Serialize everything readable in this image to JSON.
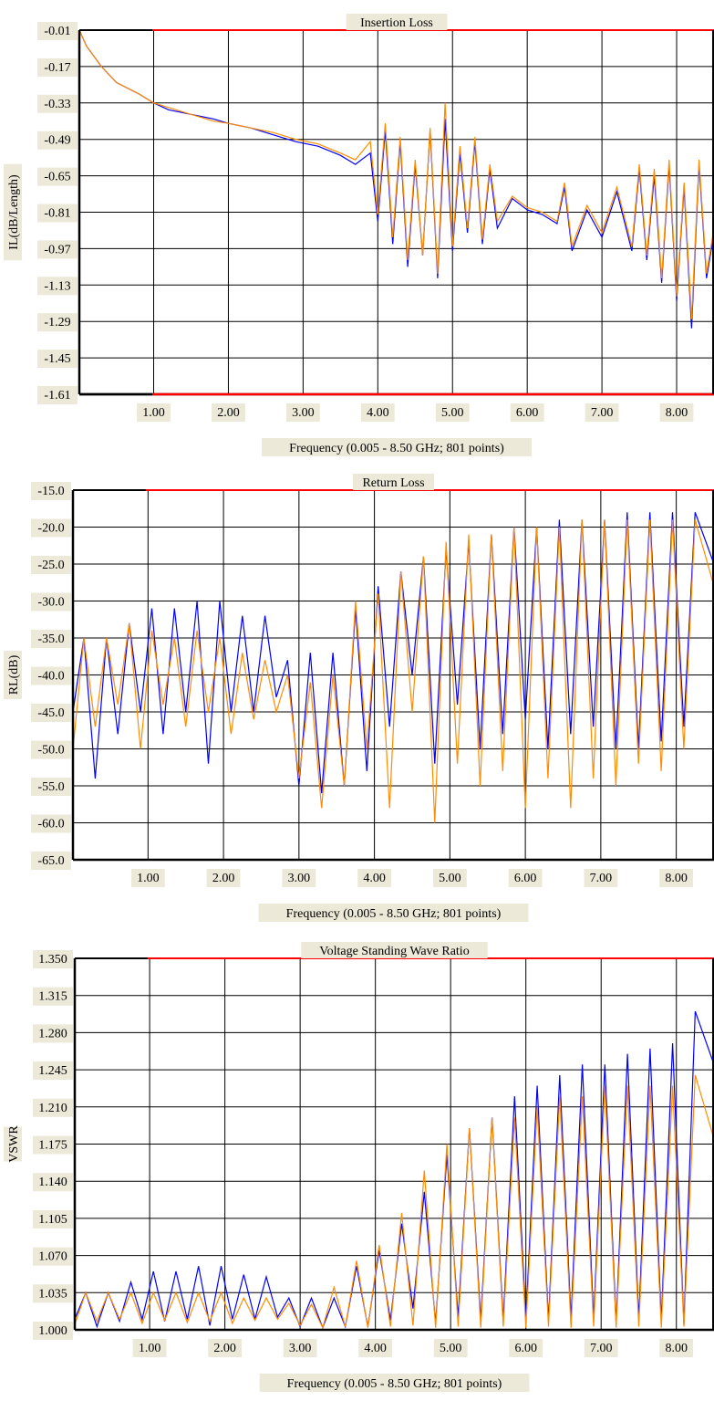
{
  "colors": {
    "background": "#ffffff",
    "frame": "#000000",
    "label_bg": "#ece9d8",
    "top_rule": "#ff0000",
    "series_a": "#0000ff",
    "series_b": "#ff8c00"
  },
  "chart_data": [
    {
      "type": "line",
      "title": "Insertion Loss",
      "ylabel": "IL(dB/Length)",
      "xlabel": "Frequency (0.005 - 8.50 GHz; 801 points)",
      "xlim": [
        0.005,
        8.5
      ],
      "ylim": [
        -1.61,
        -0.01
      ],
      "x_ticks": [
        "1.00",
        "2.00",
        "3.00",
        "4.00",
        "5.00",
        "6.00",
        "7.00",
        "8.00"
      ],
      "y_ticks": [
        "-0.01",
        "-0.17",
        "-0.33",
        "-0.49",
        "-0.65",
        "-0.81",
        "-0.97",
        "-1.13",
        "-1.29",
        "-1.45",
        "-1.61"
      ],
      "grid": true,
      "series": [
        {
          "color": "blue",
          "x": [
            0.005,
            0.1,
            0.3,
            0.5,
            0.8,
            1.0,
            1.2,
            1.5,
            1.8,
            2.0,
            2.3,
            2.6,
            2.9,
            3.2,
            3.5,
            3.7,
            3.9,
            4.0,
            4.1,
            4.2,
            4.3,
            4.4,
            4.5,
            4.6,
            4.7,
            4.8,
            4.9,
            5.0,
            5.1,
            5.2,
            5.3,
            5.4,
            5.5,
            5.6,
            5.8,
            6.0,
            6.2,
            6.4,
            6.5,
            6.6,
            6.8,
            7.0,
            7.2,
            7.4,
            7.5,
            7.6,
            7.7,
            7.8,
            7.9,
            8.0,
            8.1,
            8.2,
            8.3,
            8.4,
            8.5
          ],
          "y": [
            -0.01,
            -0.08,
            -0.17,
            -0.24,
            -0.29,
            -0.33,
            -0.36,
            -0.38,
            -0.4,
            -0.42,
            -0.44,
            -0.47,
            -0.5,
            -0.52,
            -0.56,
            -0.6,
            -0.55,
            -0.85,
            -0.45,
            -0.95,
            -0.5,
            -1.05,
            -0.6,
            -1.0,
            -0.45,
            -1.1,
            -0.4,
            -0.98,
            -0.55,
            -0.9,
            -0.5,
            -0.95,
            -0.62,
            -0.88,
            -0.75,
            -0.8,
            -0.82,
            -0.86,
            -0.7,
            -0.98,
            -0.8,
            -0.92,
            -0.72,
            -0.98,
            -0.62,
            -1.02,
            -0.65,
            -1.12,
            -0.6,
            -1.2,
            -0.7,
            -1.32,
            -0.6,
            -1.1,
            -0.9
          ]
        },
        {
          "color": "orange",
          "x": [
            0.005,
            0.1,
            0.3,
            0.5,
            0.8,
            1.0,
            1.2,
            1.5,
            1.8,
            2.0,
            2.3,
            2.6,
            2.9,
            3.2,
            3.5,
            3.7,
            3.9,
            4.0,
            4.1,
            4.2,
            4.3,
            4.4,
            4.5,
            4.6,
            4.7,
            4.8,
            4.9,
            5.0,
            5.1,
            5.2,
            5.3,
            5.4,
            5.5,
            5.6,
            5.8,
            6.0,
            6.2,
            6.4,
            6.5,
            6.6,
            6.8,
            7.0,
            7.2,
            7.4,
            7.5,
            7.6,
            7.7,
            7.8,
            7.9,
            8.0,
            8.1,
            8.2,
            8.3,
            8.4,
            8.5
          ],
          "y": [
            -0.01,
            -0.08,
            -0.17,
            -0.24,
            -0.29,
            -0.33,
            -0.35,
            -0.38,
            -0.41,
            -0.42,
            -0.44,
            -0.46,
            -0.49,
            -0.51,
            -0.55,
            -0.58,
            -0.5,
            -0.82,
            -0.42,
            -0.92,
            -0.48,
            -1.02,
            -0.58,
            -1.0,
            -0.44,
            -1.08,
            -0.33,
            -0.96,
            -0.52,
            -0.88,
            -0.48,
            -0.93,
            -0.6,
            -0.85,
            -0.74,
            -0.79,
            -0.81,
            -0.85,
            -0.68,
            -0.96,
            -0.78,
            -0.9,
            -0.7,
            -0.96,
            -0.6,
            -1.0,
            -0.62,
            -1.1,
            -0.58,
            -1.18,
            -0.68,
            -1.28,
            -0.58,
            -1.08,
            -0.88
          ]
        }
      ]
    },
    {
      "type": "line",
      "title": "Return Loss",
      "ylabel": "RL(dB)",
      "xlabel": "Frequency (0.005 - 8.50 GHz; 801 points)",
      "xlim": [
        0.005,
        8.5
      ],
      "ylim": [
        -65.0,
        -15.0
      ],
      "x_ticks": [
        "1.00",
        "2.00",
        "3.00",
        "4.00",
        "5.00",
        "6.00",
        "7.00",
        "8.00"
      ],
      "y_ticks": [
        "-15.0",
        "-20.0",
        "-25.0",
        "-30.0",
        "-35.0",
        "-40.0",
        "-45.0",
        "-50.0",
        "-55.0",
        "-60.0",
        "-65.0"
      ],
      "grid": true,
      "series": [
        {
          "color": "blue",
          "x": [
            0.005,
            0.15,
            0.3,
            0.45,
            0.6,
            0.75,
            0.9,
            1.05,
            1.2,
            1.35,
            1.5,
            1.65,
            1.8,
            1.95,
            2.1,
            2.25,
            2.4,
            2.55,
            2.7,
            2.85,
            3.0,
            3.15,
            3.3,
            3.45,
            3.6,
            3.75,
            3.9,
            4.05,
            4.2,
            4.35,
            4.5,
            4.65,
            4.8,
            4.95,
            5.1,
            5.25,
            5.4,
            5.55,
            5.7,
            5.85,
            6.0,
            6.15,
            6.3,
            6.45,
            6.6,
            6.75,
            6.9,
            7.05,
            7.2,
            7.35,
            7.5,
            7.65,
            7.8,
            7.95,
            8.1,
            8.25,
            8.5
          ],
          "y": [
            -45,
            -35,
            -54,
            -35,
            -48,
            -33,
            -45,
            -31,
            -48,
            -31,
            -45,
            -30,
            -52,
            -30,
            -45,
            -32,
            -45,
            -32,
            -43,
            -38,
            -55,
            -37,
            -56,
            -37,
            -55,
            -31,
            -53,
            -28,
            -47,
            -26,
            -40,
            -24,
            -52,
            -23,
            -44,
            -22,
            -50,
            -21,
            -48,
            -20,
            -46,
            -20,
            -50,
            -19,
            -48,
            -19,
            -47,
            -19,
            -50,
            -18,
            -50,
            -18,
            -49,
            -18,
            -47,
            -18,
            -25
          ]
        },
        {
          "color": "orange",
          "x": [
            0.005,
            0.15,
            0.3,
            0.45,
            0.6,
            0.75,
            0.9,
            1.05,
            1.2,
            1.35,
            1.5,
            1.65,
            1.8,
            1.95,
            2.1,
            2.25,
            2.4,
            2.55,
            2.7,
            2.85,
            3.0,
            3.15,
            3.3,
            3.45,
            3.6,
            3.75,
            3.9,
            4.05,
            4.2,
            4.35,
            4.5,
            4.65,
            4.8,
            4.95,
            5.1,
            5.25,
            5.4,
            5.55,
            5.7,
            5.85,
            6.0,
            6.15,
            6.3,
            6.45,
            6.6,
            6.75,
            6.9,
            7.05,
            7.2,
            7.35,
            7.5,
            7.65,
            7.8,
            7.95,
            8.1,
            8.25,
            8.5
          ],
          "y": [
            -50,
            -35,
            -47,
            -35,
            -44,
            -33,
            -50,
            -34,
            -44,
            -35,
            -47,
            -34,
            -45,
            -35,
            -48,
            -37,
            -46,
            -38,
            -45,
            -40,
            -54,
            -41,
            -58,
            -40,
            -55,
            -30,
            -50,
            -29,
            -58,
            -26,
            -45,
            -24,
            -60,
            -22,
            -52,
            -21,
            -55,
            -21,
            -53,
            -20,
            -58,
            -20,
            -54,
            -20,
            -58,
            -19,
            -54,
            -19,
            -55,
            -19,
            -52,
            -19,
            -53,
            -19,
            -50,
            -19,
            -28
          ]
        }
      ]
    },
    {
      "type": "line",
      "title": "Voltage Standing Wave Ratio",
      "ylabel": "VSWR",
      "xlabel": "Frequency (0.005 - 8.50 GHz; 801 points)",
      "xlim": [
        0.005,
        8.5
      ],
      "ylim": [
        1.0,
        1.35
      ],
      "x_ticks": [
        "1.00",
        "2.00",
        "3.00",
        "4.00",
        "5.00",
        "6.00",
        "7.00",
        "8.00"
      ],
      "y_ticks": [
        "1.350",
        "1.315",
        "1.280",
        "1.245",
        "1.210",
        "1.175",
        "1.140",
        "1.105",
        "1.070",
        "1.035",
        "1.000"
      ],
      "grid": true,
      "series": [
        {
          "color": "blue",
          "x": [
            0.005,
            0.15,
            0.3,
            0.45,
            0.6,
            0.75,
            0.9,
            1.05,
            1.2,
            1.35,
            1.5,
            1.65,
            1.8,
            1.95,
            2.1,
            2.25,
            2.4,
            2.55,
            2.7,
            2.85,
            3.0,
            3.15,
            3.3,
            3.45,
            3.6,
            3.75,
            3.9,
            4.05,
            4.2,
            4.35,
            4.5,
            4.65,
            4.8,
            4.95,
            5.1,
            5.25,
            5.4,
            5.55,
            5.7,
            5.85,
            6.0,
            6.15,
            6.3,
            6.45,
            6.6,
            6.75,
            6.9,
            7.05,
            7.2,
            7.35,
            7.5,
            7.65,
            7.8,
            7.95,
            8.1,
            8.25,
            8.5
          ],
          "y": [
            1.01,
            1.035,
            1.003,
            1.035,
            1.008,
            1.045,
            1.01,
            1.055,
            1.008,
            1.055,
            1.01,
            1.06,
            1.004,
            1.06,
            1.01,
            1.052,
            1.01,
            1.05,
            1.012,
            1.03,
            1.003,
            1.03,
            1.002,
            1.03,
            1.003,
            1.06,
            1.003,
            1.075,
            1.009,
            1.1,
            1.02,
            1.13,
            1.006,
            1.165,
            1.012,
            1.19,
            1.009,
            1.2,
            1.009,
            1.22,
            1.01,
            1.23,
            1.008,
            1.24,
            1.01,
            1.25,
            1.01,
            1.25,
            1.006,
            1.26,
            1.01,
            1.265,
            1.008,
            1.27,
            1.005,
            1.3,
            1.25
          ]
        },
        {
          "color": "orange",
          "x": [
            0.005,
            0.15,
            0.3,
            0.45,
            0.6,
            0.75,
            0.9,
            1.05,
            1.2,
            1.35,
            1.5,
            1.65,
            1.8,
            1.95,
            2.1,
            2.25,
            2.4,
            2.55,
            2.7,
            2.85,
            3.0,
            3.15,
            3.3,
            3.45,
            3.6,
            3.75,
            3.9,
            4.05,
            4.2,
            4.35,
            4.5,
            4.65,
            4.8,
            4.95,
            5.1,
            5.25,
            5.4,
            5.55,
            5.7,
            5.85,
            6.0,
            6.15,
            6.3,
            6.45,
            6.6,
            6.75,
            6.9,
            7.05,
            7.2,
            7.35,
            7.5,
            7.65,
            7.8,
            7.95,
            8.1,
            8.25,
            8.5
          ],
          "y": [
            1.005,
            1.035,
            1.008,
            1.035,
            1.01,
            1.035,
            1.006,
            1.035,
            1.009,
            1.035,
            1.007,
            1.035,
            1.008,
            1.035,
            1.006,
            1.03,
            1.009,
            1.03,
            1.01,
            1.025,
            1.004,
            1.024,
            1.002,
            1.04,
            1.003,
            1.065,
            1.002,
            1.08,
            1.003,
            1.11,
            1.004,
            1.15,
            1.002,
            1.175,
            1.003,
            1.19,
            1.002,
            1.2,
            1.003,
            1.2,
            1.002,
            1.21,
            1.003,
            1.22,
            1.002,
            1.22,
            1.003,
            1.23,
            1.002,
            1.23,
            1.003,
            1.23,
            1.002,
            1.23,
            1.003,
            1.24,
            1.18
          ]
        }
      ]
    }
  ]
}
